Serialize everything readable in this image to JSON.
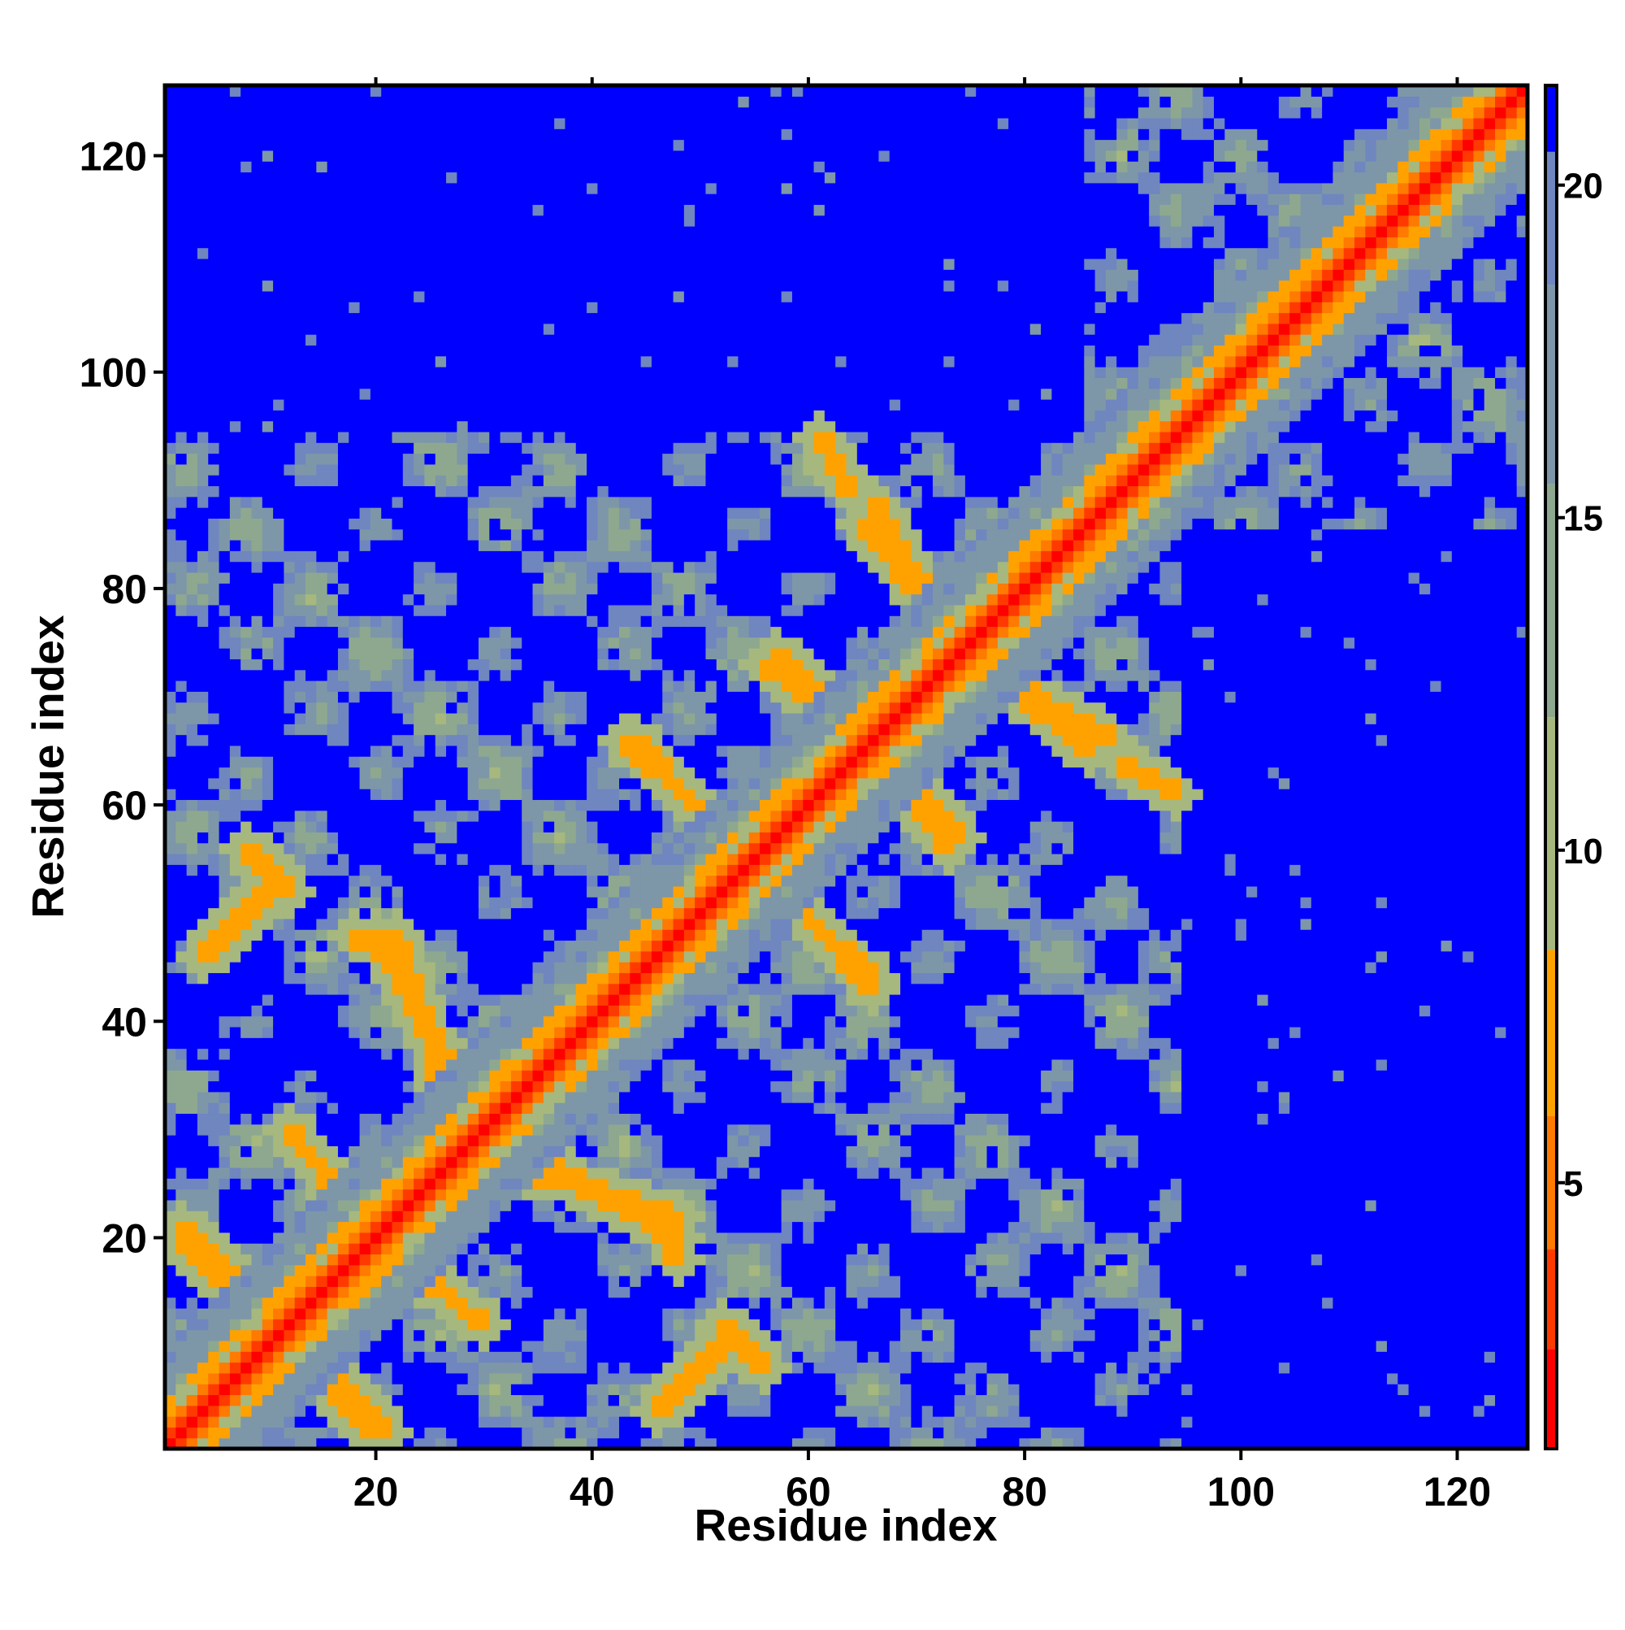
{
  "chart_data": {
    "type": "heatmap",
    "title": "",
    "xlabel": "Residue index",
    "ylabel": "Residue index",
    "n_residues": 126,
    "xlim": [
      1,
      126
    ],
    "ylim": [
      1,
      126
    ],
    "x_ticks": [
      20,
      40,
      60,
      80,
      100,
      120
    ],
    "y_ticks": [
      20,
      40,
      60,
      80,
      100,
      120
    ],
    "colorbar": {
      "ticks": [
        5,
        10,
        15,
        20
      ],
      "range": [
        1,
        21.5
      ],
      "orientation": "vertical",
      "placement": "right",
      "colormap": [
        {
          "max": 2.5,
          "color": "#ff0000"
        },
        {
          "max": 4.0,
          "color": "#ff3a00"
        },
        {
          "max": 6.0,
          "color": "#ff7a00"
        },
        {
          "max": 8.5,
          "color": "#ffa200"
        },
        {
          "max": 12.0,
          "color": "#a6b87e"
        },
        {
          "max": 15.5,
          "color": "#8ea890"
        },
        {
          "max": 18.5,
          "color": "#7d97a8"
        },
        {
          "max": 20.5,
          "color": "#6f86bf"
        },
        {
          "max": 999,
          "color": "#0000ff"
        }
      ]
    },
    "matrix_description": "Residue-residue distance map (Å), symmetric about the diagonal; saturated blue indicates distances above ~20.5",
    "diagonal_value": 1.0,
    "cutoff_color": "#0000ff",
    "secondary_contacts": [
      {
        "x1": 2,
        "y1": 20,
        "x2": 8,
        "y2": 14
      },
      {
        "x1": 10,
        "y1": 14,
        "x2": 21,
        "y2": 2
      },
      {
        "x1": 12,
        "y1": 30,
        "x2": 20,
        "y2": 20
      },
      {
        "x1": 20,
        "y1": 48,
        "x2": 30,
        "y2": 30
      },
      {
        "x1": 28,
        "y1": 28,
        "x2": 48,
        "y2": 22
      },
      {
        "x1": 44,
        "y1": 66,
        "x2": 55,
        "y2": 54
      },
      {
        "x1": 57,
        "y1": 74,
        "x2": 64,
        "y2": 67
      },
      {
        "x1": 65,
        "y1": 86,
        "x2": 74,
        "y2": 75
      },
      {
        "x1": 67,
        "y1": 64,
        "x2": 73,
        "y2": 56
      },
      {
        "x1": 56,
        "y1": 54,
        "x2": 66,
        "y2": 43
      },
      {
        "x1": 74,
        "y1": 74,
        "x2": 88,
        "y2": 66
      },
      {
        "x1": 89,
        "y1": 64,
        "x2": 94,
        "y2": 61
      },
      {
        "x1": 46,
        "y1": 22,
        "x2": 48,
        "y2": 18
      },
      {
        "x1": 52,
        "y1": 12,
        "x2": 56,
        "y2": 8
      },
      {
        "x1": 46,
        "y1": 4,
        "x2": 52,
        "y2": 10
      }
    ],
    "domains": [
      {
        "start": 1,
        "end": 94
      },
      {
        "start": 86,
        "end": 126
      }
    ]
  }
}
